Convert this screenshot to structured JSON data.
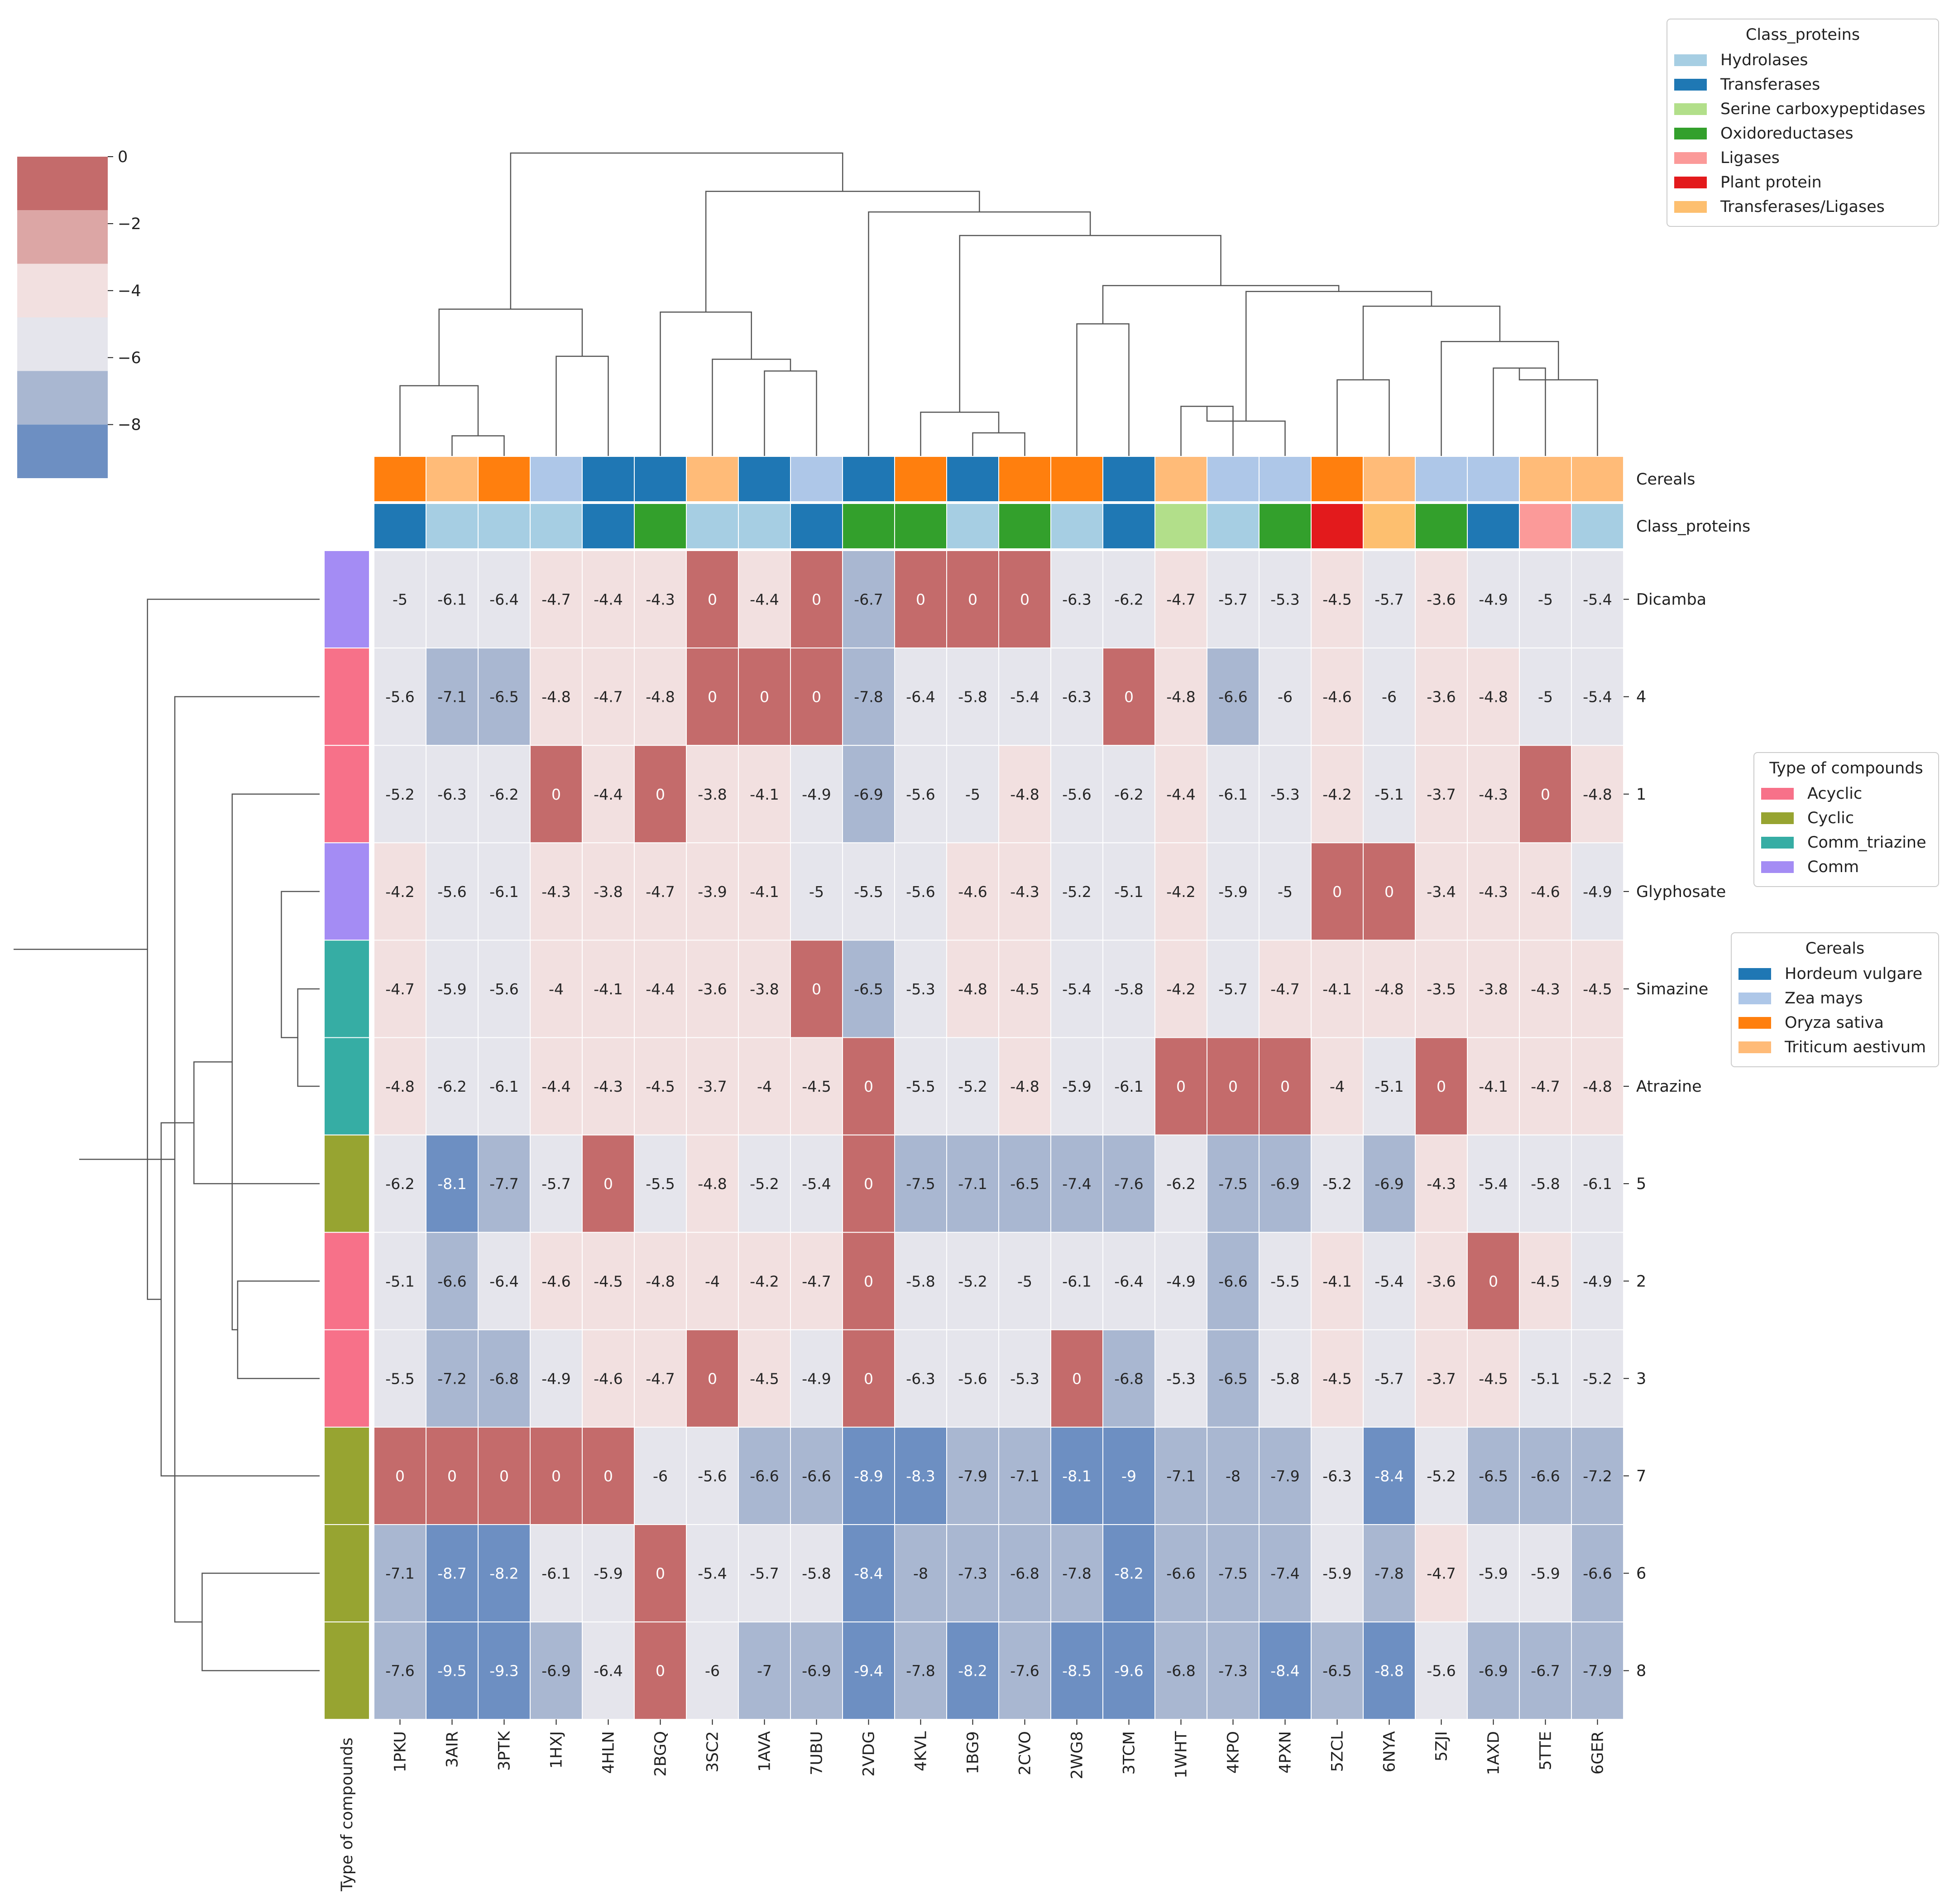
{
  "chart_data": {
    "type": "heatmap",
    "title": "",
    "rows": [
      "Dicamba",
      "4",
      "1",
      "Glyphosate",
      "Simazine",
      "Atrazine",
      "5",
      "2",
      "3",
      "7",
      "6",
      "8"
    ],
    "columns": [
      "1PKU",
      "3AIR",
      "3PTK",
      "1HXJ",
      "4HLN",
      "2BGQ",
      "3SC2",
      "1AVA",
      "7UBU",
      "2VDG",
      "4KVL",
      "1BG9",
      "2CVO",
      "2WG8",
      "3TCM",
      "1WHT",
      "4KPO",
      "4PXN",
      "5ZCL",
      "6NYA",
      "5ZJI",
      "1AXD",
      "5TTE",
      "6GER"
    ],
    "values": [
      [
        -5,
        -6.1,
        -6.4,
        -4.7,
        -4.4,
        -4.3,
        0,
        -4.4,
        0,
        -6.7,
        0,
        0,
        0,
        -6.3,
        -6.2,
        -4.7,
        -5.7,
        -5.3,
        -4.5,
        -5.7,
        -3.6,
        -4.9,
        -5,
        -5.4
      ],
      [
        -5.6,
        -7.1,
        -6.5,
        -4.8,
        -4.7,
        -4.8,
        0,
        0,
        0,
        -7.8,
        -6.4,
        -5.8,
        -5.4,
        -6.3,
        0,
        -4.8,
        -6.6,
        -6,
        -4.6,
        -6,
        -3.6,
        -4.8,
        -5,
        -5.4
      ],
      [
        -5.2,
        -6.3,
        -6.2,
        0,
        -4.4,
        0,
        -3.8,
        -4.1,
        -4.9,
        -6.9,
        -5.6,
        -5,
        -4.8,
        -5.6,
        -6.2,
        -4.4,
        -6.1,
        -5.3,
        -4.2,
        -5.1,
        -3.7,
        -4.3,
        0,
        -4.8
      ],
      [
        -4.2,
        -5.6,
        -6.1,
        -4.3,
        -3.8,
        -4.7,
        -3.9,
        -4.1,
        -5,
        -5.5,
        -5.6,
        -4.6,
        -4.3,
        -5.2,
        -5.1,
        -4.2,
        -5.9,
        -5,
        0,
        0,
        -3.4,
        -4.3,
        -4.6,
        -4.9
      ],
      [
        -4.7,
        -5.9,
        -5.6,
        -4,
        -4.1,
        -4.4,
        -3.6,
        -3.8,
        0,
        -6.5,
        -5.3,
        -4.8,
        -4.5,
        -5.4,
        -5.8,
        -4.2,
        -5.7,
        -4.7,
        -4.1,
        -4.8,
        -3.5,
        -3.8,
        -4.3,
        -4.5
      ],
      [
        -4.8,
        -6.2,
        -6.1,
        -4.4,
        -4.3,
        -4.5,
        -3.7,
        -4,
        -4.5,
        0,
        -5.5,
        -5.2,
        -4.8,
        -5.9,
        -6.1,
        0,
        0,
        0,
        -4,
        -5.1,
        0,
        -4.1,
        -4.7,
        -4.8
      ],
      [
        -6.2,
        -8.1,
        -7.7,
        -5.7,
        0,
        -5.5,
        -4.8,
        -5.2,
        -5.4,
        0,
        -7.5,
        -7.1,
        -6.5,
        -7.4,
        -7.6,
        -6.2,
        -7.5,
        -6.9,
        -5.2,
        -6.9,
        -4.3,
        -5.4,
        -5.8,
        -6.1
      ],
      [
        -5.1,
        -6.6,
        -6.4,
        -4.6,
        -4.5,
        -4.8,
        -4,
        -4.2,
        -4.7,
        0,
        -5.8,
        -5.2,
        -5,
        -6.1,
        -6.4,
        -4.9,
        -6.6,
        -5.5,
        -4.1,
        -5.4,
        -3.6,
        0,
        -4.5,
        -4.9
      ],
      [
        -5.5,
        -7.2,
        -6.8,
        -4.9,
        -4.6,
        -4.7,
        0,
        -4.5,
        -4.9,
        0,
        -6.3,
        -5.6,
        -5.3,
        0,
        -6.8,
        -5.3,
        -6.5,
        -5.8,
        -4.5,
        -5.7,
        -3.7,
        -4.5,
        -5.1,
        -5.2
      ],
      [
        0,
        0,
        0,
        0,
        0,
        -6,
        -5.6,
        -6.6,
        -6.6,
        -8.9,
        -8.3,
        -7.9,
        -7.1,
        -8.1,
        -9,
        -7.1,
        -8,
        -7.9,
        -6.3,
        -8.4,
        -5.2,
        -6.5,
        -6.6,
        -7.2
      ],
      [
        -7.1,
        -8.7,
        -8.2,
        -6.1,
        -5.9,
        0,
        -5.4,
        -5.7,
        -5.8,
        -8.4,
        -8,
        -7.3,
        -6.8,
        -7.8,
        -8.2,
        -6.6,
        -7.5,
        -7.4,
        -5.9,
        -7.8,
        -4.7,
        -5.9,
        -5.9,
        -6.6
      ],
      [
        -7.6,
        -9.5,
        -9.3,
        -6.9,
        -6.4,
        0,
        -6,
        -7,
        -6.9,
        -9.4,
        -7.8,
        -8.2,
        -7.6,
        -8.5,
        -9.6,
        -6.8,
        -7.3,
        -8.4,
        -6.5,
        -8.8,
        -5.6,
        -6.9,
        -6.7,
        -7.9
      ]
    ],
    "row_annotation": {
      "name": "Type of compounds",
      "values": [
        "Comm",
        "Acyclic",
        "Acyclic",
        "Comm",
        "Comm_triazine",
        "Comm_triazine",
        "Cyclic",
        "Acyclic",
        "Acyclic",
        "Cyclic",
        "Cyclic",
        "Cyclic"
      ]
    },
    "col_annotations": [
      {
        "name": "Cereals",
        "values": [
          "Oryza sativa",
          "Triticum aestivum",
          "Oryza sativa",
          "Zea mays",
          "Hordeum vulgare",
          "Hordeum vulgare",
          "Triticum aestivum",
          "Hordeum vulgare",
          "Zea mays",
          "Hordeum vulgare",
          "Oryza sativa",
          "Hordeum vulgare",
          "Oryza sativa",
          "Oryza sativa",
          "Hordeum vulgare",
          "Triticum aestivum",
          "Zea mays",
          "Zea mays",
          "Oryza sativa",
          "Triticum aestivum",
          "Zea mays",
          "Zea mays",
          "Triticum aestivum",
          "Triticum aestivum"
        ]
      },
      {
        "name": "Class_proteins",
        "values": [
          "Transferases",
          "Hydrolases",
          "Hydrolases",
          "Hydrolases",
          "Transferases",
          "Oxidoreductases",
          "Hydrolases",
          "Hydrolases",
          "Transferases",
          "Oxidoreductases",
          "Oxidoreductases",
          "Hydrolases",
          "Oxidoreductases",
          "Hydrolases",
          "Transferases",
          "Serine carboxypeptidases",
          "Hydrolases",
          "Oxidoreductases",
          "Plant protein",
          "Transferases/Ligases",
          "Oxidoreductases",
          "Transferases",
          "Ligases",
          "Hydrolases"
        ]
      }
    ],
    "legends": [
      {
        "title": "Class_proteins",
        "position": "top-right",
        "entries": [
          {
            "label": "Hydrolases",
            "color": "#a6cee3"
          },
          {
            "label": "Transferases",
            "color": "#1f78b4"
          },
          {
            "label": "Serine carboxypeptidases",
            "color": "#b2df8a"
          },
          {
            "label": "Oxidoreductases",
            "color": "#33a02c"
          },
          {
            "label": "Ligases",
            "color": "#fb9a99"
          },
          {
            "label": "Plant protein",
            "color": "#e31a1c"
          },
          {
            "label": "Transferases/Ligases",
            "color": "#fdbf6f"
          }
        ]
      },
      {
        "title": "Type of compounds",
        "position": "right",
        "entries": [
          {
            "label": "Acyclic",
            "color": "#f77189"
          },
          {
            "label": "Cyclic",
            "color": "#97a431"
          },
          {
            "label": "Comm_triazine",
            "color": "#36ada4"
          },
          {
            "label": "Comm",
            "color": "#a48cf4"
          }
        ]
      },
      {
        "title": "Cereals",
        "position": "right",
        "entries": [
          {
            "label": "Hordeum vulgare",
            "color": "#1f77b4"
          },
          {
            "label": "Zea mays",
            "color": "#aec7e8"
          },
          {
            "label": "Oryza sativa",
            "color": "#ff7f0e"
          },
          {
            "label": "Triticum aestivum",
            "color": "#ffbb78"
          }
        ]
      }
    ],
    "colorbar": {
      "position": "top-left",
      "ticks": [
        "0",
        "−2",
        "−4",
        "−6",
        "−8"
      ],
      "range": [
        -9.6,
        0
      ],
      "bins": [
        {
          "from": -1.6,
          "to": 0,
          "color": "#c46b6b"
        },
        {
          "from": -3.2,
          "to": -1.6,
          "color": "#dca6a5"
        },
        {
          "from": -4.8,
          "to": -3.2,
          "color": "#f2e0e0"
        },
        {
          "from": -6.4,
          "to": -4.8,
          "color": "#e5e5ec"
        },
        {
          "from": -8.0,
          "to": -6.4,
          "color": "#a9b7d1"
        },
        {
          "from": -9.6,
          "to": -8.0,
          "color": "#6d8fc2"
        }
      ]
    },
    "row_dendrogram": {
      "merges": [
        [
          4,
          5
        ],
        [
          3,
          12
        ],
        [
          7,
          8
        ],
        [
          2,
          14
        ],
        [
          10,
          11
        ],
        [
          6,
          15
        ],
        [
          1,
          16
        ],
        [
          9,
          17
        ],
        [
          0,
          19
        ],
        [
          18,
          21
        ],
        [
          20,
          22
        ]
      ],
      "heights": [
        0.8,
        1.4,
        3.0,
        3.2,
        4.3,
        4.6,
        5.3,
        5.8,
        6.3,
        8.8,
        11.2
      ]
    },
    "col_dendrogram": {
      "merges": [
        [
          1,
          2
        ],
        [
          0,
          24
        ],
        [
          11,
          12
        ],
        [
          7,
          8
        ],
        [
          10,
          26
        ],
        [
          15,
          16
        ],
        [
          18,
          19
        ],
        [
          21,
          22
        ],
        [
          23,
          31
        ],
        [
          17,
          29
        ],
        [
          6,
          27
        ],
        [
          13,
          14
        ],
        [
          3,
          4
        ],
        [
          20,
          32
        ],
        [
          5,
          34
        ],
        [
          30,
          37
        ],
        [
          33,
          39
        ],
        [
          35,
          40
        ],
        [
          25,
          36
        ],
        [
          28,
          41
        ],
        [
          9,
          43
        ],
        [
          38,
          44
        ],
        [
          42,
          45
        ]
      ],
      "heights": [
        0.7,
        2.4,
        0.8,
        2.9,
        1.5,
        1.7,
        2.6,
        3.0,
        2.6,
        1.2,
        3.3,
        4.5,
        3.4,
        3.9,
        4.9,
        5.1,
        5.6,
        5.8,
        5.0,
        7.5,
        8.3,
        9.0,
        10.3
      ]
    }
  }
}
